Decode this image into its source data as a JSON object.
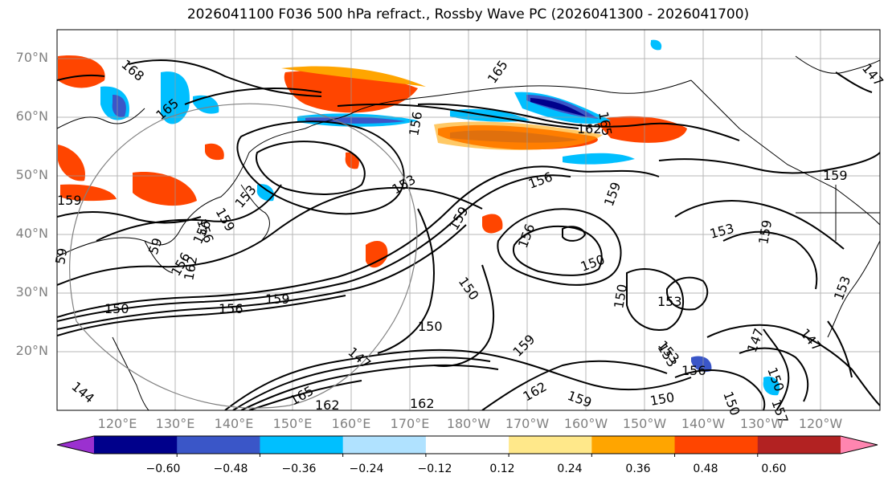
{
  "title": "2026041100 F036 500 hPa refract., Rossby Wave PC (2026041300 - 2026041700)",
  "lat_labels": [
    "70°N",
    "60°N",
    "50°N",
    "40°N",
    "30°N",
    "20°N"
  ],
  "lon_labels": [
    "120°E",
    "130°E",
    "140°E",
    "150°E",
    "160°E",
    "170°E",
    "180°W",
    "170°W",
    "160°W",
    "150°W",
    "140°W",
    "130°W",
    "120°W"
  ],
  "colorbar": {
    "colors": [
      "#9b30d0",
      "#00008b",
      "#3a56c8",
      "#00bfff",
      "#b0e2ff",
      "#ffffff",
      "#ffe88a",
      "#ffa500",
      "#ff4500",
      "#b22222",
      "#ff85b0"
    ],
    "ticks": [
      "−0.60",
      "−0.48",
      "−0.36",
      "−0.24",
      "−0.12",
      "0.12",
      "0.24",
      "0.36",
      "0.48",
      "0.60"
    ]
  },
  "contour_labels": [
    "168",
    "165",
    "165",
    "156",
    "165",
    "162",
    "159",
    "153",
    "156",
    "159",
    "156",
    "150",
    "153",
    "159",
    "153",
    "156",
    "159",
    "159",
    "156",
    "156",
    "150",
    "150",
    "153",
    "150",
    "159",
    "159",
    "150",
    "150",
    "162",
    "156",
    "156",
    "147",
    "165",
    "162",
    "162",
    "162",
    "159",
    "150",
    "153",
    "147",
    "150",
    "153",
    "147",
    "144",
    "147",
    "59",
    "59",
    "159",
    "157",
    "153"
  ]
}
